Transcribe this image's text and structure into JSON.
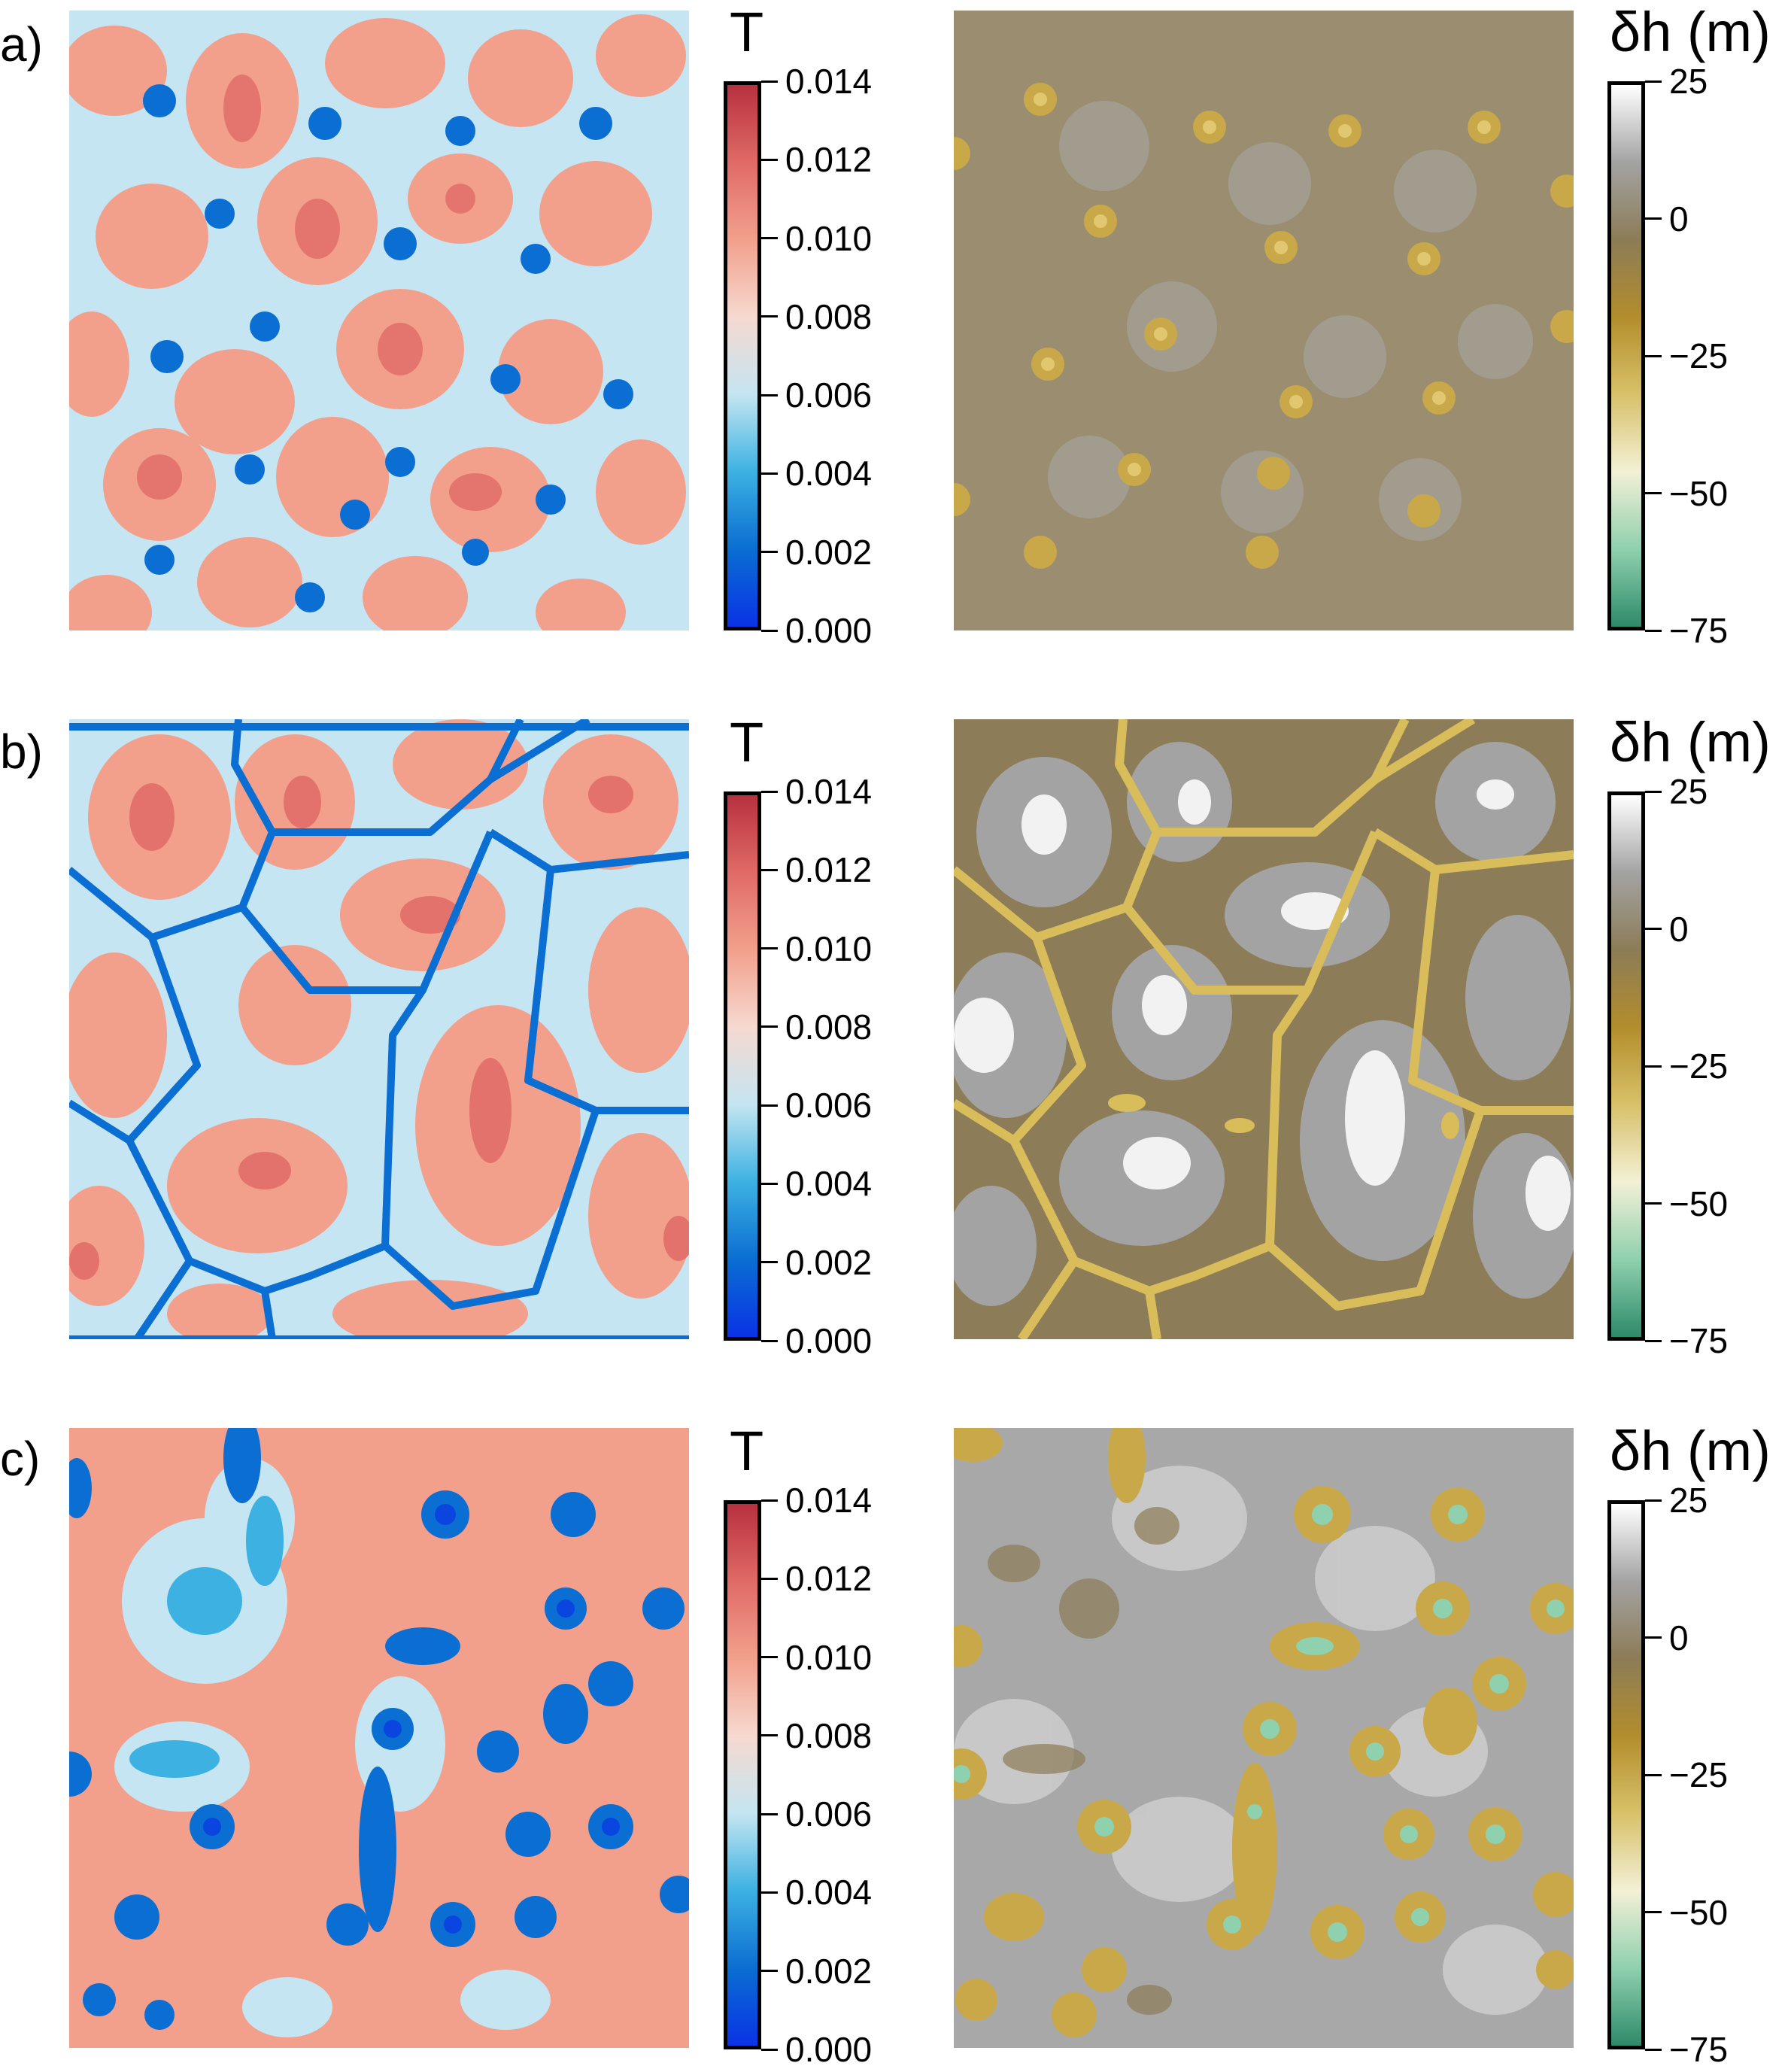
{
  "rows": [
    {
      "label": "a)",
      "pattern": "hex"
    },
    {
      "label": "b)",
      "pattern": "cells"
    },
    {
      "label": "c)",
      "pattern": "spots"
    }
  ],
  "colorbars": {
    "T": {
      "title": "T",
      "ticks": [
        "0.000",
        "0.002",
        "0.004",
        "0.006",
        "0.008",
        "0.010",
        "0.012",
        "0.014"
      ],
      "range": [
        0.0,
        0.014
      ],
      "colors": [
        "#0a33e6",
        "#0a6ed2",
        "#3cb1e2",
        "#c4e5f1",
        "#f6d9d0",
        "#f2a08c",
        "#e06a66",
        "#b8313f"
      ]
    },
    "dh": {
      "title": "δh (m)",
      "ticks": [
        "25",
        "0",
        "−25",
        "−50",
        "−75"
      ],
      "range": [
        -75,
        25
      ],
      "colors": [
        "#2e8a6a",
        "#8fd0ae",
        "#f3f0d6",
        "#d8c169",
        "#b38d2c",
        "#8c7c57",
        "#a3a3a3",
        "#ffffff"
      ]
    }
  },
  "chart_data": [
    {
      "type": "heatmap",
      "panel": "a)",
      "variable": "T",
      "zlim": [
        0.0,
        0.014
      ]
    },
    {
      "type": "heatmap",
      "panel": "a)",
      "variable": "δh (m)",
      "zlim": [
        -75,
        25
      ]
    },
    {
      "type": "heatmap",
      "panel": "b)",
      "variable": "T",
      "zlim": [
        0.0,
        0.014
      ]
    },
    {
      "type": "heatmap",
      "panel": "b)",
      "variable": "δh (m)",
      "zlim": [
        -75,
        25
      ]
    },
    {
      "type": "heatmap",
      "panel": "c)",
      "variable": "T",
      "zlim": [
        0.0,
        0.014
      ]
    },
    {
      "type": "heatmap",
      "panel": "c)",
      "variable": "δh (m)",
      "zlim": [
        -75,
        25
      ]
    }
  ]
}
